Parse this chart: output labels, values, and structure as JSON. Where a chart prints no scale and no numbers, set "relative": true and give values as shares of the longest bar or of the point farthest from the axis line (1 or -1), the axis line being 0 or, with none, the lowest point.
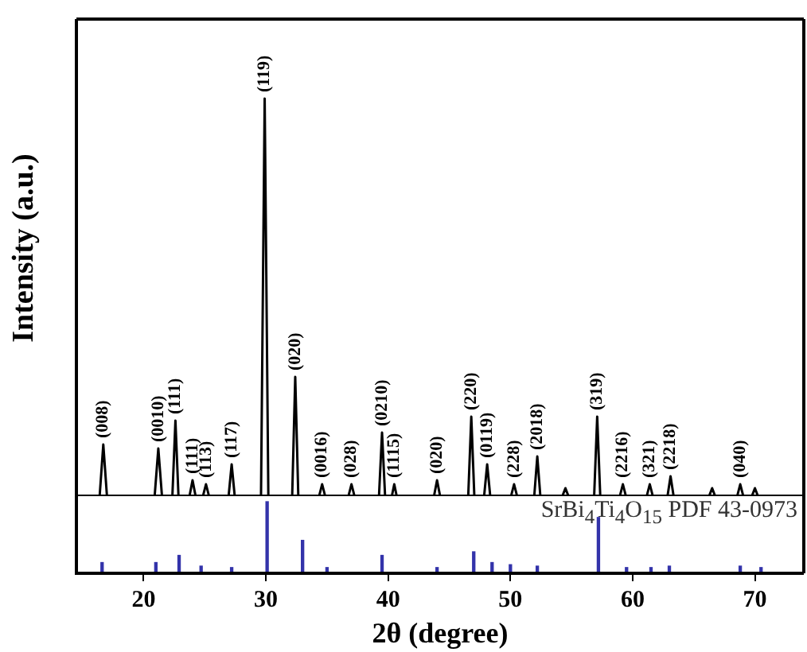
{
  "chart_data": [
    {
      "type": "line",
      "relative": true,
      "ylabel": "Intensity (a.u.)",
      "xlim": [
        14.5,
        74
      ],
      "xticks": [
        20,
        30,
        40,
        50,
        60,
        70
      ],
      "tick_labels": false,
      "marker": "none",
      "x": [
        14.5,
        16.4,
        16.7,
        17.0,
        20.9,
        21.2,
        21.5,
        22.35,
        22.6,
        22.85,
        23.75,
        24.0,
        24.25,
        24.85,
        25.1,
        25.35,
        26.95,
        27.2,
        27.45,
        29.6,
        29.9,
        30.2,
        32.15,
        32.4,
        32.65,
        34.35,
        34.6,
        34.85,
        36.75,
        37.0,
        37.25,
        39.25,
        39.5,
        39.75,
        40.3,
        40.5,
        40.7,
        43.75,
        44.0,
        44.25,
        46.55,
        46.8,
        47.05,
        47.85,
        48.1,
        48.35,
        50.05,
        50.3,
        50.55,
        51.95,
        52.2,
        52.45,
        54.25,
        54.5,
        54.75,
        56.85,
        57.1,
        57.35,
        58.95,
        59.2,
        59.45,
        61.15,
        61.4,
        61.65,
        62.85,
        63.1,
        63.35,
        66.25,
        66.5,
        66.75,
        68.55,
        68.8,
        69.05,
        69.75,
        70.0,
        70.25,
        74
      ],
      "series": [
        {
          "color": "#000000",
          "values": [
            0,
            0,
            0.13,
            0,
            0,
            0.12,
            0,
            0,
            0.19,
            0,
            0,
            0.04,
            0,
            0,
            0.03,
            0,
            0,
            0.08,
            0,
            0,
            1,
            0,
            0,
            0.3,
            0,
            0,
            0.03,
            0,
            0,
            0.03,
            0,
            0,
            0.16,
            0,
            0,
            0.03,
            0,
            0,
            0.04,
            0,
            0,
            0.2,
            0,
            0,
            0.08,
            0,
            0,
            0.03,
            0,
            0,
            0.1,
            0,
            0,
            0.02,
            0,
            0,
            0.2,
            0,
            0,
            0.03,
            0,
            0,
            0.03,
            0,
            0,
            0.05,
            0,
            0,
            0.02,
            0,
            0,
            0.03,
            0,
            0,
            0.02,
            0,
            0
          ]
        }
      ],
      "annotations": [
        {
          "text": "(008)",
          "x": 16.7,
          "y": 0.13
        },
        {
          "text": "(0010)",
          "x": 21.2,
          "y": 0.12
        },
        {
          "text": "(111)",
          "x": 22.6,
          "y": 0.19
        },
        {
          "text": "(111)",
          "x": 24.0,
          "y": 0.04
        },
        {
          "text": "(113)",
          "x": 25.1,
          "y": 0.03
        },
        {
          "text": "(117)",
          "x": 27.2,
          "y": 0.08
        },
        {
          "text": "(119)",
          "x": 29.9,
          "y": 1
        },
        {
          "text": "(020)",
          "x": 32.4,
          "y": 0.3
        },
        {
          "text": "(0016)",
          "x": 34.6,
          "y": 0.03
        },
        {
          "text": "(028)",
          "x": 37.0,
          "y": 0.03
        },
        {
          "text": "(0210)",
          "x": 39.5,
          "y": 0.16
        },
        {
          "text": "(1115)",
          "x": 40.5,
          "y": 0.03
        },
        {
          "text": "(020)",
          "x": 44.0,
          "y": 0.04
        },
        {
          "text": "(220)",
          "x": 46.8,
          "y": 0.2
        },
        {
          "text": "(0119)",
          "x": 48.1,
          "y": 0.08
        },
        {
          "text": "(228)",
          "x": 50.3,
          "y": 0.03
        },
        {
          "text": "(2018)",
          "x": 52.2,
          "y": 0.1
        },
        {
          "text": "(319)",
          "x": 57.1,
          "y": 0.2
        },
        {
          "text": "(2216)",
          "x": 59.2,
          "y": 0.03
        },
        {
          "text": "(321)",
          "x": 61.4,
          "y": 0.03
        },
        {
          "text": "(2218)",
          "x": 63.1,
          "y": 0.05
        },
        {
          "text": "(040)",
          "x": 68.8,
          "y": 0.03
        }
      ]
    },
    {
      "type": "bar",
      "relative": true,
      "xlabel": "2θ (degree)",
      "xlim": [
        14.5,
        74
      ],
      "xticks": [
        20,
        30,
        40,
        50,
        60,
        70
      ],
      "tick_labels": "x",
      "color": "#3333aa",
      "x": [
        16.6,
        21.0,
        22.9,
        24.7,
        27.2,
        30.1,
        33.0,
        35.0,
        39.5,
        44.0,
        47.0,
        48.5,
        50.0,
        52.2,
        57.2,
        59.5,
        61.5,
        63.0,
        68.8,
        70.5
      ],
      "values": [
        0.15,
        0.15,
        0.25,
        0.1,
        0.08,
        1,
        0.46,
        0.08,
        0.25,
        0.08,
        0.3,
        0.15,
        0.12,
        0.1,
        0.78,
        0.08,
        0.08,
        0.1,
        0.1,
        0.08
      ],
      "annotations": [
        "SrBi$_{4}$Ti$_{4}$O$_{15}$ PDF 43-0973"
      ]
    }
  ]
}
